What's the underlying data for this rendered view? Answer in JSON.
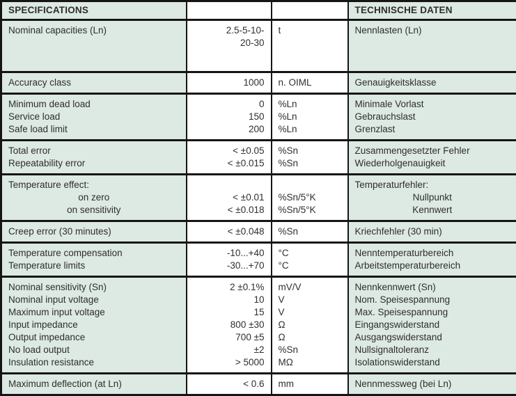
{
  "header": {
    "specifications": "SPECIFICATIONS",
    "technische_daten": "TECHNISCHE DATEN"
  },
  "colors": {
    "row_background": "#dde9e3",
    "border": "#151515",
    "text": "#2e2e2e"
  },
  "groups": [
    {
      "rows": [
        {
          "en": "Nominal capacities (Ln)",
          "value": "2.5-5-10-\n20-30",
          "unit": "t",
          "de": "Nennlasten (Ln)"
        }
      ]
    },
    {
      "rows": [
        {
          "en": "Accuracy class",
          "value": "1000",
          "unit": "n. OIML",
          "de": "Genauigkeitsklasse"
        }
      ]
    },
    {
      "rows": [
        {
          "en": "Minimum dead load",
          "value": "0",
          "unit": "%Ln",
          "de": "Minimale Vorlast"
        },
        {
          "en": "Service load",
          "value": "150",
          "unit": "%Ln",
          "de": "Gebrauchslast"
        },
        {
          "en": "Safe load limit",
          "value": "200",
          "unit": "%Ln",
          "de": "Grenzlast"
        }
      ]
    },
    {
      "rows": [
        {
          "en": "Total error",
          "value": "< ±0.05",
          "unit": "%Sn",
          "de": "Zusammengesetzter Fehler"
        },
        {
          "en": "Repeatability error",
          "value": "< ±0.015",
          "unit": "%Sn",
          "de": "Wiederholgenauigkeit"
        }
      ]
    },
    {
      "rows": [
        {
          "en": "Temperature effect:",
          "value": "",
          "unit": "",
          "de": "Temperaturfehler:"
        },
        {
          "en": "on zero",
          "value": "< ±0.01",
          "unit": "%Sn/5°K",
          "de": "Nullpunkt"
        },
        {
          "en": "on sensitivity",
          "value": "< ±0.018",
          "unit": "%Sn/5°K",
          "de": "Kennwert"
        }
      ]
    },
    {
      "rows": [
        {
          "en": "Creep error (30 minutes)",
          "value": "< ±0.048",
          "unit": "%Sn",
          "de": "Kriechfehler (30 min)"
        }
      ]
    },
    {
      "rows": [
        {
          "en": "Temperature compensation",
          "value": "-10...+40",
          "unit": "°C",
          "de": "Nenntemperaturbereich"
        },
        {
          "en": "Temperature limits",
          "value": "-30...+70",
          "unit": "°C",
          "de": "Arbeitstemperaturbereich"
        }
      ]
    },
    {
      "rows": [
        {
          "en": "Nominal sensitivity (Sn)",
          "value": "2 ±0.1%",
          "unit": "mV/V",
          "de": "Nennkennwert (Sn)"
        },
        {
          "en": "Nominal input voltage",
          "value": "10",
          "unit": "V",
          "de": "Nom. Speisespannung"
        },
        {
          "en": "Maximum input voltage",
          "value": "15",
          "unit": "V",
          "de": "Max. Speisespannung"
        },
        {
          "en": "Input impedance",
          "value": "800 ±30",
          "unit": "Ω",
          "de": "Eingangswiderstand"
        },
        {
          "en": "Output impedance",
          "value": "700 ±5",
          "unit": "Ω",
          "de": "Ausgangswiderstand"
        },
        {
          "en": "No load output",
          "value": "±2",
          "unit": "%Sn",
          "de": "Nullsignaltoleranz"
        },
        {
          "en": "Insulation resistance",
          "value": "> 5000",
          "unit": "MΩ",
          "de": "Isolationswiderstand"
        }
      ]
    },
    {
      "rows": [
        {
          "en": "Maximum deflection (at Ln)",
          "value": "< 0.6",
          "unit": "mm",
          "de": "Nennmessweg (bei Ln)"
        }
      ]
    }
  ]
}
